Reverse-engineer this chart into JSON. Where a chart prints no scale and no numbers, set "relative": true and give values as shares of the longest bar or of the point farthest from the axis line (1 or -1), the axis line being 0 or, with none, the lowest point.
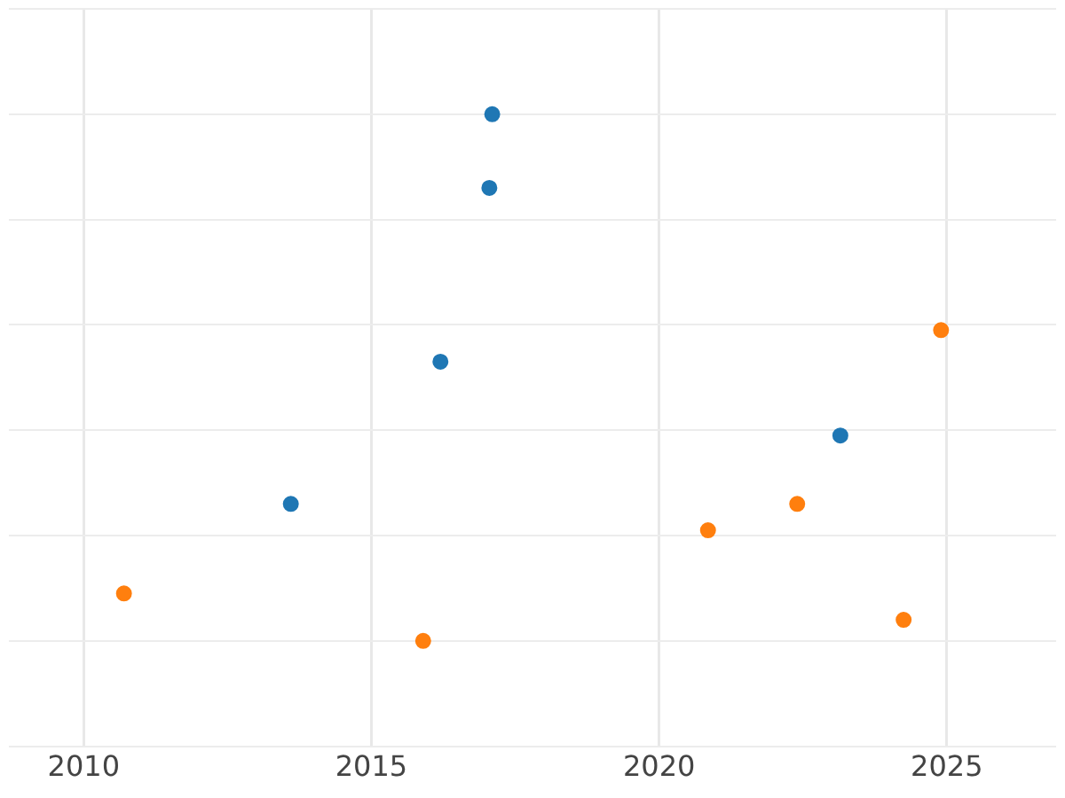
{
  "chart_data": {
    "type": "scatter",
    "relative": true,
    "marker": "circle",
    "grid": true,
    "legend": false,
    "xlim": [
      2008.7,
      2026.9
    ],
    "xticks": [
      2010,
      2015,
      2020,
      2025
    ],
    "series": [
      {
        "color": "#1f77b4",
        "x": [
          2017.1,
          2017.05,
          2016.2,
          2023.15,
          2013.6
        ],
        "values": [
          1,
          0.86,
          0.53,
          0.39,
          0.26
        ]
      },
      {
        "color": "#ff7f0e",
        "x": [
          2010.7,
          2015.9,
          2020.85,
          2022.4,
          2024.25,
          2024.9
        ],
        "values": [
          0.09,
          0,
          0.21,
          0.26,
          0.04,
          0.59
        ]
      }
    ]
  }
}
